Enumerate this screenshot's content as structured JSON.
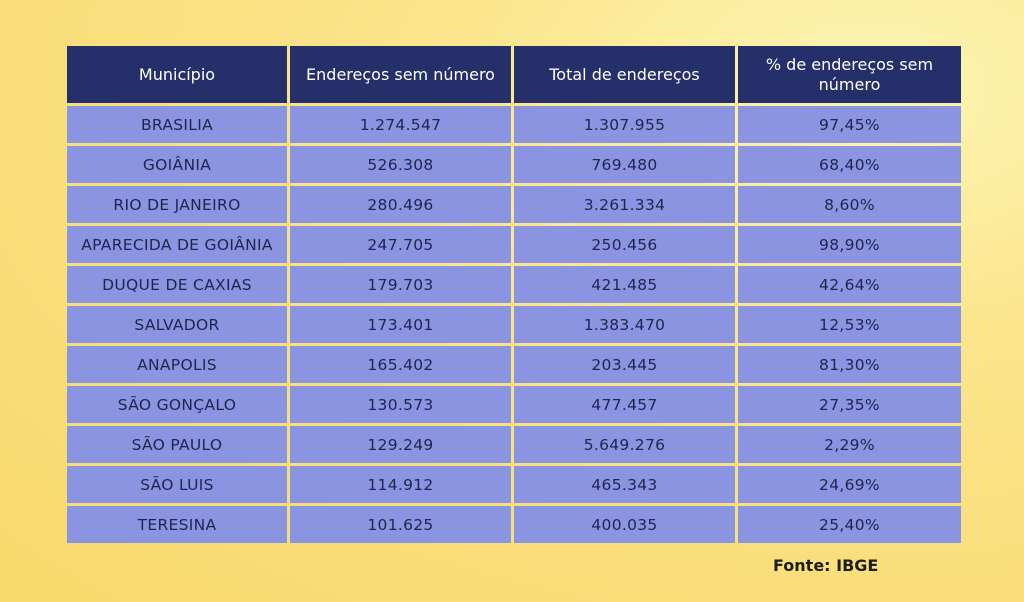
{
  "table": {
    "headers": [
      "Município",
      "Endereços sem número",
      "Total de endereços",
      "% de endereços sem número"
    ],
    "rows": [
      [
        "BRASILIA",
        "1.274.547",
        "1.307.955",
        "97,45%"
      ],
      [
        "GOIÂNIA",
        "526.308",
        "769.480",
        "68,40%"
      ],
      [
        "RIO DE JANEIRO",
        "280.496",
        "3.261.334",
        "8,60%"
      ],
      [
        "APARECIDA DE GOIÂNIA",
        "247.705",
        "250.456",
        "98,90%"
      ],
      [
        "DUQUE DE CAXIAS",
        "179.703",
        "421.485",
        "42,64%"
      ],
      [
        "SALVADOR",
        "173.401",
        "1.383.470",
        "12,53%"
      ],
      [
        "ANAPOLIS",
        "165.402",
        "203.445",
        "81,30%"
      ],
      [
        "SÃO GONÇALO",
        "130.573",
        "477.457",
        "27,35%"
      ],
      [
        "SÃO PAULO",
        "129.249",
        "5.649.276",
        "2,29%"
      ],
      [
        "SÃO LUIS",
        "114.912",
        "465.343",
        "24,69%"
      ],
      [
        "TERESINA",
        "101.625",
        "400.035",
        "25,40%"
      ]
    ]
  },
  "source": "Fonte: IBGE",
  "colors": {
    "header_bg": "#25306a",
    "cell_bg": "#8a94e0",
    "page_bg": "#f7d86a"
  }
}
